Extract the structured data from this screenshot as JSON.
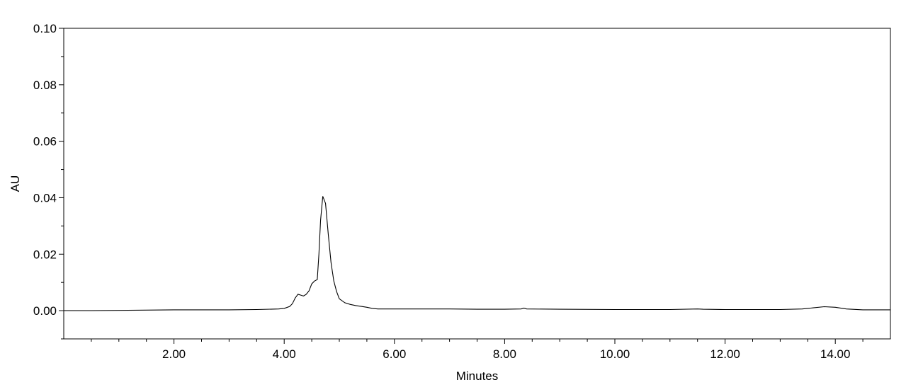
{
  "chart_data": {
    "type": "line",
    "title": "",
    "xlabel": "Minutes",
    "ylabel": "AU",
    "xlim": [
      0.0,
      15.0
    ],
    "ylim": [
      -0.01,
      0.1
    ],
    "x_ticks": [
      2.0,
      4.0,
      6.0,
      8.0,
      10.0,
      12.0,
      14.0
    ],
    "x_tick_labels": [
      "2.00",
      "4.00",
      "6.00",
      "8.00",
      "10.00",
      "12.00",
      "14.00"
    ],
    "y_ticks": [
      0.0,
      0.02,
      0.04,
      0.06,
      0.08,
      0.1
    ],
    "y_tick_labels": [
      "0.00",
      "0.02",
      "0.04",
      "0.06",
      "0.08",
      "0.10"
    ],
    "grid": false,
    "legend": "none",
    "line_color": "#000000",
    "series": [
      {
        "x": [
          0.0,
          0.5,
          1.0,
          1.5,
          2.0,
          2.5,
          3.0,
          3.5,
          3.9,
          4.0,
          4.1,
          4.15,
          4.2,
          4.25,
          4.3,
          4.35,
          4.4,
          4.45,
          4.5,
          4.55,
          4.6,
          4.63,
          4.66,
          4.7,
          4.75,
          4.8,
          4.85,
          4.9,
          4.95,
          5.0,
          5.1,
          5.2,
          5.3,
          5.4,
          5.5,
          5.6,
          5.7,
          6.0,
          6.5,
          7.0,
          7.5,
          8.0,
          8.3,
          8.35,
          8.4,
          9.0,
          10.0,
          11.0,
          11.5,
          11.6,
          12.0,
          13.0,
          13.4,
          13.6,
          13.8,
          14.0,
          14.2,
          14.5,
          15.0
        ],
        "y": [
          0.0,
          0.0,
          0.0001,
          0.0002,
          0.0003,
          0.0003,
          0.0003,
          0.0004,
          0.0006,
          0.0008,
          0.0015,
          0.0025,
          0.0045,
          0.0058,
          0.0055,
          0.0052,
          0.0058,
          0.007,
          0.0095,
          0.0105,
          0.011,
          0.02,
          0.032,
          0.0405,
          0.038,
          0.027,
          0.017,
          0.0105,
          0.0068,
          0.0042,
          0.0028,
          0.0022,
          0.0018,
          0.0015,
          0.0012,
          0.0008,
          0.0006,
          0.0006,
          0.0006,
          0.0006,
          0.0005,
          0.0005,
          0.0006,
          0.0009,
          0.0006,
          0.0005,
          0.0004,
          0.0004,
          0.0006,
          0.0005,
          0.0004,
          0.0004,
          0.0006,
          0.001,
          0.0014,
          0.0012,
          0.0006,
          0.0003,
          0.0003
        ]
      }
    ]
  }
}
